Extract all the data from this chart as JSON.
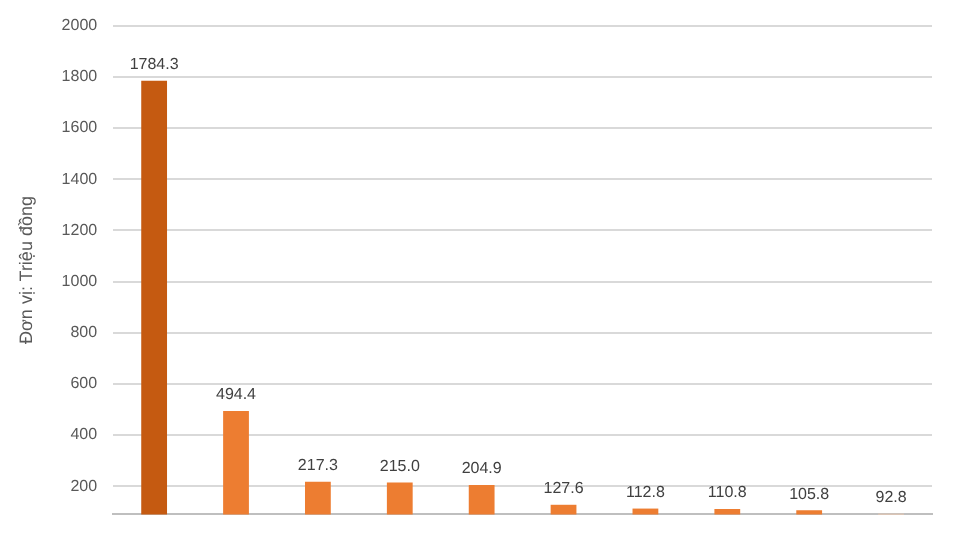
{
  "chart_data": {
    "type": "bar",
    "ylabel": "Đơn vị: Triệu đồng",
    "categories": [
      null,
      null,
      null,
      null,
      null,
      null,
      null,
      null,
      null,
      null
    ],
    "values": [
      1784.3,
      494.4,
      217.3,
      215.0,
      204.9,
      127.6,
      112.8,
      110.8,
      105.8,
      92.8
    ],
    "colors": [
      "#c55a11",
      "#ed7d31",
      "#ed7d31",
      "#ed7d31",
      "#ed7d31",
      "#ed7d31",
      "#ed7d31",
      "#ed7d31",
      "#ed7d31",
      "#f8cbad"
    ],
    "value_labels": [
      "1784.3",
      "494.4",
      "217.3",
      "215.0",
      "204.9",
      "127.6",
      "112.8",
      "110.8",
      "105.8",
      "92.8"
    ],
    "ylim": [
      90,
      2000
    ],
    "yticks": [
      200,
      400,
      600,
      800,
      1000,
      1200,
      1400,
      1600,
      1800,
      2000
    ],
    "grid": "y",
    "legend": false
  }
}
